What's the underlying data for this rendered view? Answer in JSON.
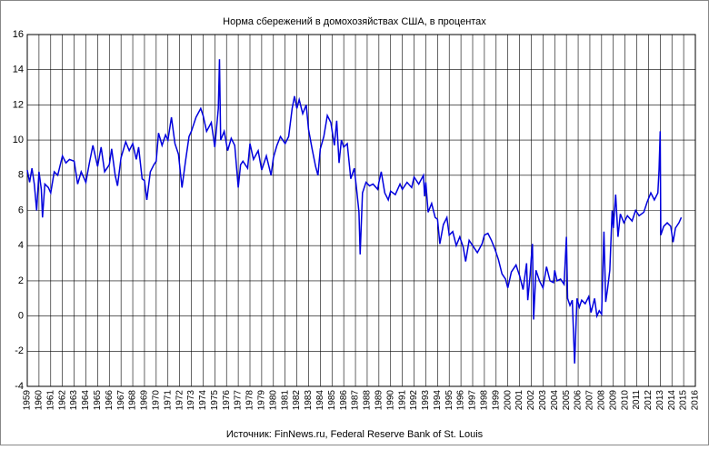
{
  "chart_data": {
    "type": "line",
    "title": "Норма сбережений в домохозяйствах США, в процентах",
    "source": "Источник: FinNews.ru, Federal Reserve Bank of St. Louis",
    "xlim": [
      1959,
      2016
    ],
    "xticks": [
      1959,
      1960,
      1961,
      1962,
      1963,
      1964,
      1965,
      1966,
      1967,
      1968,
      1969,
      1970,
      1971,
      1972,
      1973,
      1974,
      1975,
      1976,
      1977,
      1978,
      1979,
      1980,
      1981,
      1982,
      1983,
      1984,
      1985,
      1986,
      1987,
      1988,
      1989,
      1990,
      1991,
      1992,
      1993,
      1994,
      1995,
      1996,
      1997,
      1998,
      1999,
      2000,
      2001,
      2002,
      2003,
      2004,
      2005,
      2006,
      2007,
      2008,
      2009,
      2010,
      2011,
      2012,
      2013,
      2014,
      2015,
      2016
    ],
    "ylim": [
      -4,
      16
    ],
    "yticks": [
      -4,
      -2,
      0,
      2,
      4,
      6,
      8,
      10,
      12,
      14,
      16
    ],
    "grid": true,
    "series": [
      {
        "color": "#0000dd",
        "x": [
          1959.0,
          1959.2,
          1959.4,
          1959.6,
          1959.8,
          1960.0,
          1960.2,
          1960.3,
          1960.5,
          1960.8,
          1961.0,
          1961.3,
          1961.6,
          1962.0,
          1962.3,
          1962.6,
          1963.0,
          1963.3,
          1963.6,
          1964.0,
          1964.3,
          1964.6,
          1965.0,
          1965.3,
          1965.6,
          1966.0,
          1966.2,
          1966.5,
          1966.7,
          1967.0,
          1967.4,
          1967.7,
          1968.0,
          1968.3,
          1968.5,
          1968.8,
          1969.0,
          1969.2,
          1969.5,
          1969.8,
          1970.0,
          1970.2,
          1970.5,
          1970.8,
          1971.0,
          1971.3,
          1971.6,
          1971.9,
          1972.2,
          1972.5,
          1972.8,
          1973.0,
          1973.4,
          1973.8,
          1974.0,
          1974.3,
          1974.7,
          1975.0,
          1975.3,
          1975.4,
          1975.5,
          1975.8,
          1976.1,
          1976.4,
          1976.7,
          1977.0,
          1977.2,
          1977.4,
          1977.8,
          1978.0,
          1978.3,
          1978.7,
          1979.0,
          1979.4,
          1979.8,
          1980.0,
          1980.3,
          1980.6,
          1981.0,
          1981.3,
          1981.6,
          1981.8,
          1982.0,
          1982.2,
          1982.5,
          1982.8,
          1983.0,
          1983.3,
          1983.6,
          1983.8,
          1984.0,
          1984.3,
          1984.6,
          1984.9,
          1985.2,
          1985.4,
          1985.6,
          1985.8,
          1986.0,
          1986.3,
          1986.6,
          1986.9,
          1987.1,
          1987.3,
          1987.4,
          1987.6,
          1987.9,
          1988.2,
          1988.5,
          1988.9,
          1989.0,
          1989.2,
          1989.5,
          1989.8,
          1990.0,
          1990.4,
          1990.8,
          1991.0,
          1991.4,
          1991.8,
          1992.0,
          1992.4,
          1992.8,
          1992.9,
          1993.0,
          1993.2,
          1993.5,
          1993.8,
          1994.0,
          1994.2,
          1994.5,
          1994.8,
          1995.0,
          1995.3,
          1995.6,
          1995.9,
          1996.2,
          1996.4,
          1996.7,
          1997.0,
          1997.4,
          1997.8,
          1998.0,
          1998.3,
          1998.6,
          1998.9,
          1999.2,
          1999.5,
          1999.8,
          2000.0,
          2000.3,
          2000.7,
          2001.0,
          2001.3,
          2001.6,
          2001.7,
          2001.9,
          2002.0,
          2002.1,
          2002.2,
          2002.4,
          2002.7,
          2003.0,
          2003.3,
          2003.6,
          2003.9,
          2004.0,
          2004.2,
          2004.5,
          2004.8,
          2005.0,
          2005.1,
          2005.3,
          2005.5,
          2005.7,
          2005.9,
          2006.1,
          2006.3,
          2006.6,
          2006.9,
          2007.1,
          2007.4,
          2007.6,
          2007.8,
          2008.0,
          2008.2,
          2008.35,
          2008.5,
          2008.7,
          2008.9,
          2009.0,
          2009.2,
          2009.4,
          2009.6,
          2009.9,
          2010.2,
          2010.6,
          2010.9,
          2011.2,
          2011.6,
          2011.9,
          2012.2,
          2012.5,
          2012.8,
          2012.9,
          2013.0,
          2013.05,
          2013.3,
          2013.6,
          2013.9,
          2014.1,
          2014.3,
          2014.6,
          2014.8
        ],
        "values": [
          8.3,
          7.6,
          8.4,
          7.5,
          6.0,
          8.2,
          7.2,
          5.6,
          7.5,
          7.3,
          7.0,
          8.2,
          8.0,
          9.1,
          8.7,
          8.9,
          8.8,
          7.5,
          8.2,
          7.6,
          8.7,
          9.7,
          8.5,
          9.6,
          8.2,
          8.6,
          9.5,
          8.0,
          7.4,
          9.0,
          9.9,
          9.4,
          9.8,
          8.9,
          9.6,
          7.8,
          7.7,
          6.6,
          8.2,
          8.6,
          8.8,
          10.4,
          9.7,
          10.3,
          10.0,
          11.3,
          9.8,
          9.2,
          7.3,
          8.8,
          10.2,
          10.5,
          11.3,
          11.8,
          11.4,
          10.5,
          11.0,
          9.6,
          11.8,
          14.6,
          10.0,
          10.5,
          9.4,
          10.1,
          9.7,
          7.3,
          8.6,
          8.8,
          8.4,
          9.8,
          8.9,
          9.4,
          8.3,
          9.1,
          8.0,
          9.0,
          9.7,
          10.2,
          9.8,
          10.2,
          11.8,
          12.5,
          11.8,
          12.3,
          11.5,
          12.0,
          10.6,
          9.5,
          8.5,
          8.0,
          9.5,
          10.2,
          11.4,
          11.0,
          9.7,
          11.1,
          8.7,
          10.0,
          9.6,
          9.8,
          7.8,
          8.4,
          7.2,
          5.9,
          3.5,
          7.0,
          7.6,
          7.4,
          7.5,
          7.2,
          7.6,
          8.2,
          7.0,
          6.6,
          7.1,
          6.9,
          7.5,
          7.2,
          7.6,
          7.3,
          7.9,
          7.5,
          8.0,
          6.8,
          7.6,
          5.9,
          6.4,
          5.6,
          5.5,
          4.1,
          5.2,
          5.6,
          4.6,
          4.8,
          4.0,
          4.5,
          3.9,
          3.1,
          4.3,
          4.0,
          3.6,
          4.1,
          4.6,
          4.7,
          4.3,
          3.8,
          3.2,
          2.4,
          2.1,
          1.6,
          2.5,
          2.9,
          2.3,
          1.5,
          3.0,
          0.9,
          2.3,
          3.3,
          4.1,
          -0.2,
          2.6,
          2.0,
          1.6,
          2.8,
          2.0,
          1.9,
          2.6,
          2.0,
          2.1,
          1.8,
          4.5,
          1.0,
          0.6,
          0.9,
          -2.7,
          1.0,
          0.5,
          0.9,
          0.7,
          1.1,
          0.2,
          1.0,
          0.0,
          0.3,
          0.1,
          4.8,
          0.8,
          1.5,
          2.6,
          6.0,
          5.0,
          6.9,
          4.5,
          5.8,
          5.3,
          5.7,
          5.4,
          6.0,
          5.7,
          5.9,
          6.5,
          7.0,
          6.6,
          7.0,
          8.3,
          10.5,
          4.6,
          5.1,
          5.3,
          5.1,
          4.2,
          5.0,
          5.3,
          5.6
        ]
      }
    ]
  }
}
